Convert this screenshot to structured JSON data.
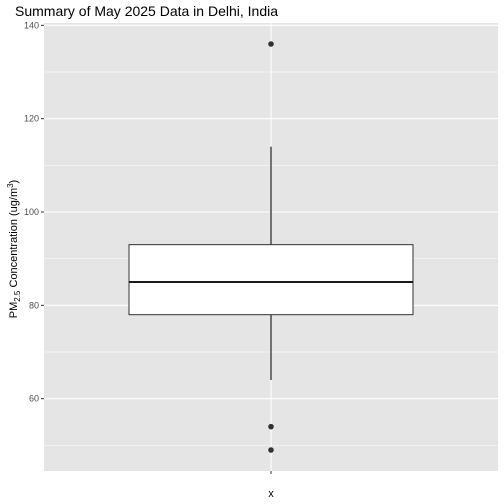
{
  "chart_data": {
    "type": "box",
    "title": "Summary of May 2025 Data in Delhi, India",
    "xlabel": "x",
    "ylabel_parts": [
      "PM",
      "2.5",
      " Concentration (ug/m",
      "3",
      ")"
    ],
    "categories": [
      ""
    ],
    "ylim": [
      44.5,
      140.5
    ],
    "yticks": [
      60,
      80,
      100,
      120,
      140
    ],
    "ytick_labels": [
      "60",
      "80",
      "100",
      "120",
      "140"
    ],
    "grid": true,
    "box": {
      "lower_whisker": 64,
      "q1": 78,
      "median": 85,
      "q3": 93,
      "upper_whisker": 114,
      "outliers": [
        136,
        54,
        49
      ]
    }
  },
  "colors": {
    "panel_bg": "#e5e5e5",
    "grid_major": "#ffffff",
    "box_fill": "#ffffff",
    "box_line": "#333333",
    "whisker": "#555555",
    "point": "#333333",
    "tick_text": "#4d4d4d"
  }
}
